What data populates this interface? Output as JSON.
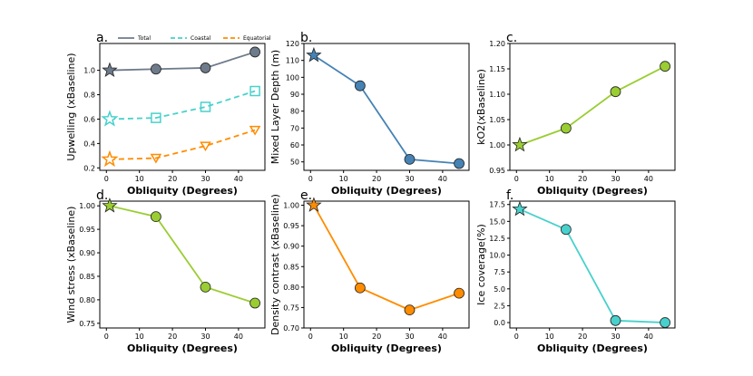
{
  "colors": {
    "total": "#6e7b8b",
    "coastal": "#48d1cc",
    "equatorial": "#ff8c00",
    "mixed_layer": "#4682b4",
    "green": "#9acd32",
    "teal": "#48d1cc",
    "orange": "#ff8c00"
  },
  "chart_data": [
    {
      "panel": "a.",
      "type": "line",
      "xlabel": "Obliquity (Degrees)",
      "ylabel": "Upwelling (xBaseline)",
      "xlim": [
        -2,
        48
      ],
      "ylim": [
        0.18,
        1.22
      ],
      "xticks": [
        0,
        10,
        20,
        30,
        40
      ],
      "xticklabels": [
        "0",
        "10",
        "20",
        "30",
        "40"
      ],
      "yticks": [
        0.2,
        0.4,
        0.6,
        0.8,
        1.0
      ],
      "yticklabels": [
        "0.2",
        "0.4",
        "0.6",
        "0.8",
        "1.0"
      ],
      "x": [
        1,
        15,
        30,
        45
      ],
      "legend": [
        "Total",
        "Coastal",
        "Equatorial"
      ],
      "series": [
        {
          "name": "Total",
          "values": [
            1.0,
            1.01,
            1.02,
            1.15
          ],
          "color": "#6e7b8b",
          "dash": false,
          "marker": "circle",
          "fill": "#6e7b8b"
        },
        {
          "name": "Coastal",
          "values": [
            0.6,
            0.61,
            0.7,
            0.83
          ],
          "color": "#48d1cc",
          "dash": true,
          "marker": "square",
          "fill": "none"
        },
        {
          "name": "Equatorial",
          "values": [
            0.27,
            0.28,
            0.38,
            0.51
          ],
          "color": "#ff8c00",
          "dash": true,
          "marker": "triangle",
          "fill": "none"
        }
      ]
    },
    {
      "panel": "b.",
      "type": "line",
      "xlabel": "Obliquity (Degrees)",
      "ylabel": "Mixed Layer Depth (m)",
      "xlim": [
        -2,
        48
      ],
      "ylim": [
        45,
        120
      ],
      "xticks": [
        0,
        10,
        20,
        30,
        40
      ],
      "xticklabels": [
        "0",
        "10",
        "20",
        "30",
        "40"
      ],
      "yticks": [
        50,
        60,
        70,
        80,
        90,
        100,
        110,
        120
      ],
      "yticklabels": [
        "50",
        "60",
        "70",
        "80",
        "90",
        "100",
        "110",
        "120"
      ],
      "x": [
        1,
        15,
        30,
        45
      ],
      "series": [
        {
          "name": "Mixed Layer Depth",
          "values": [
            113,
            95,
            51.5,
            49
          ],
          "color": "#4682b4",
          "dash": false,
          "marker": "circle",
          "fill": "#4682b4"
        }
      ]
    },
    {
      "panel": "c.",
      "type": "line",
      "xlabel": "Obliquity (Degrees)",
      "ylabel": "kO2(xBaseline)",
      "xlim": [
        -2,
        48
      ],
      "ylim": [
        0.95,
        1.2
      ],
      "xticks": [
        0,
        10,
        20,
        30,
        40
      ],
      "xticklabels": [
        "0",
        "10",
        "20",
        "30",
        "40"
      ],
      "yticks": [
        0.95,
        1.0,
        1.05,
        1.1,
        1.15,
        1.2
      ],
      "yticklabels": [
        "0.95",
        "1.00",
        "1.05",
        "1.10",
        "1.15",
        "1.20"
      ],
      "x": [
        1,
        15,
        30,
        45
      ],
      "series": [
        {
          "name": "kO2",
          "values": [
            1.0,
            1.033,
            1.105,
            1.155
          ],
          "color": "#9acd32",
          "dash": false,
          "marker": "circle",
          "fill": "#9acd32"
        }
      ]
    },
    {
      "panel": "d.",
      "type": "line",
      "xlabel": "Obliquity (Degrees)",
      "ylabel": "Wind stress (xBaseline)",
      "xlim": [
        -2,
        48
      ],
      "ylim": [
        0.74,
        1.01
      ],
      "xticks": [
        0,
        10,
        20,
        30,
        40
      ],
      "xticklabels": [
        "0",
        "10",
        "20",
        "30",
        "40"
      ],
      "yticks": [
        0.75,
        0.8,
        0.85,
        0.9,
        0.95,
        1.0
      ],
      "yticklabels": [
        "0.75",
        "0.80",
        "0.85",
        "0.90",
        "0.95",
        "1.00"
      ],
      "x": [
        1,
        15,
        30,
        45
      ],
      "series": [
        {
          "name": "Wind stress",
          "values": [
            1.0,
            0.977,
            0.827,
            0.793
          ],
          "color": "#9acd32",
          "dash": false,
          "marker": "circle",
          "fill": "#9acd32"
        }
      ]
    },
    {
      "panel": "e.",
      "type": "line",
      "xlabel": "Obliquity (Degrees)",
      "ylabel": "Density contrast (xBaseline)",
      "xlim": [
        -2,
        48
      ],
      "ylim": [
        0.7,
        1.01
      ],
      "xticks": [
        0,
        10,
        20,
        30,
        40
      ],
      "xticklabels": [
        "0",
        "10",
        "20",
        "30",
        "40"
      ],
      "yticks": [
        0.7,
        0.75,
        0.8,
        0.85,
        0.9,
        0.95,
        1.0
      ],
      "yticklabels": [
        "0.70",
        "0.75",
        "0.80",
        "0.85",
        "0.90",
        "0.95",
        "1.00"
      ],
      "x": [
        1,
        15,
        30,
        45
      ],
      "series": [
        {
          "name": "Density contrast",
          "values": [
            1.0,
            0.798,
            0.744,
            0.785
          ],
          "color": "#ff8c00",
          "dash": false,
          "marker": "circle",
          "fill": "#ff8c00"
        }
      ]
    },
    {
      "panel": "f.",
      "type": "line",
      "xlabel": "Obliquity (Degrees)",
      "ylabel": "Ice coverage(%)",
      "xlim": [
        -2,
        48
      ],
      "ylim": [
        -0.8,
        18
      ],
      "xticks": [
        0,
        10,
        20,
        30,
        40
      ],
      "xticklabels": [
        "0",
        "10",
        "20",
        "30",
        "40"
      ],
      "yticks": [
        0,
        2.5,
        5,
        7.5,
        10,
        12.5,
        15,
        17.5
      ],
      "yticklabels": [
        "0.0",
        "2.5",
        "5.0",
        "7.5",
        "10.0",
        "12.5",
        "15.0",
        "17.5"
      ],
      "x": [
        1,
        15,
        30,
        45
      ],
      "series": [
        {
          "name": "Ice coverage",
          "values": [
            16.8,
            13.8,
            0.3,
            0.0
          ],
          "color": "#48d1cc",
          "dash": false,
          "marker": "circle",
          "fill": "#48d1cc"
        }
      ]
    }
  ]
}
